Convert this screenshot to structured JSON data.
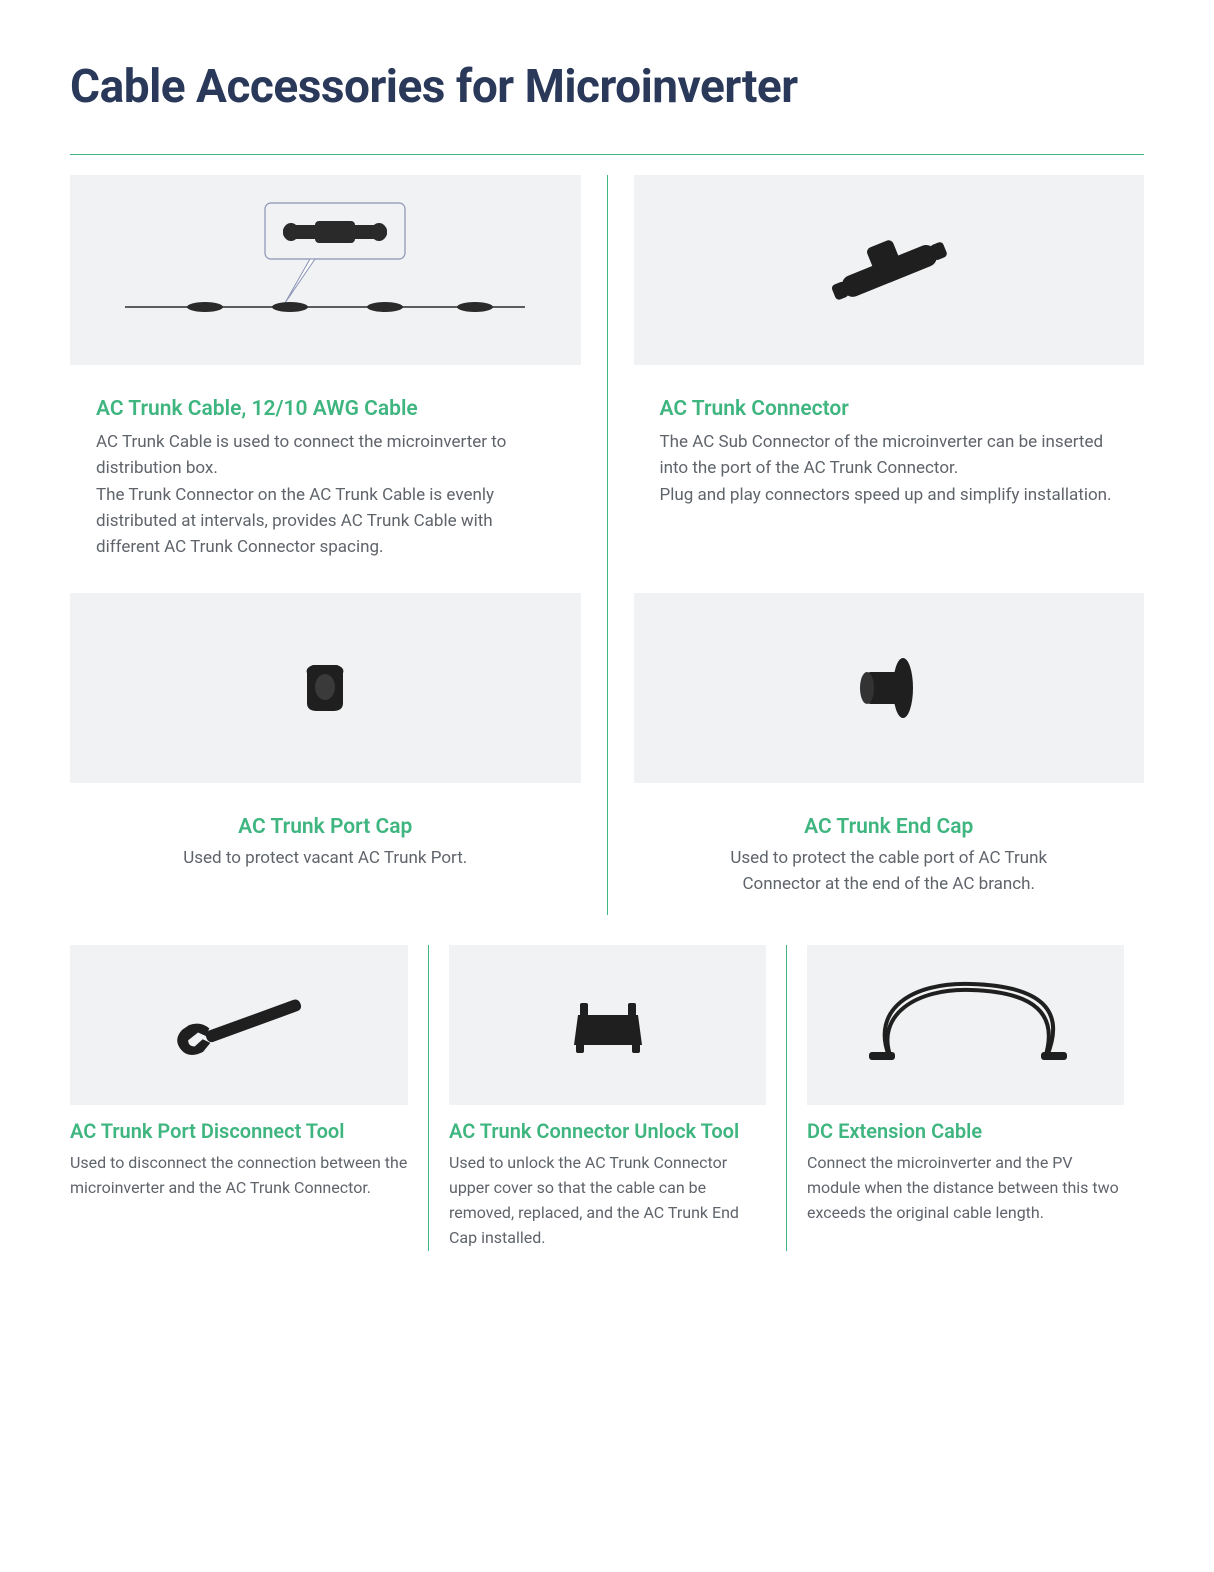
{
  "title": "Cable Accessories for Microinverter",
  "colors": {
    "heading": "#2a3959",
    "accent": "#3fb580",
    "body_text": "#5f646b",
    "panel_bg": "#f1f2f3",
    "page_bg": "#ffffff",
    "product_fill": "#2a2a2a"
  },
  "top_items": [
    {
      "title": "AC Trunk Cable, 12/10 AWG Cable",
      "desc": "AC Trunk Cable is used to connect the microinverter to distribution box.\nThe Trunk Connector on the AC Trunk Cable is evenly distributed at intervals,  provides AC Trunk Cable with different AC Trunk Connector spacing.",
      "align": "left"
    },
    {
      "title": "AC Trunk Connector",
      "desc": "The AC Sub Connector of the microinverter can be inserted into the port of the AC Trunk Connector.\nPlug and play connectors speed up and simplify installation.",
      "align": "left"
    },
    {
      "title": "AC Trunk Port Cap",
      "desc": "Used to protect vacant AC Trunk Port.",
      "align": "center"
    },
    {
      "title": "AC Trunk End Cap",
      "desc": "Used to protect the cable port of AC Trunk Connector at the end of the AC branch.",
      "align": "center"
    }
  ],
  "bottom_items": [
    {
      "title": "AC Trunk Port Disconnect Tool",
      "desc": "Used to disconnect the connection between the microinverter and the AC Trunk Connector."
    },
    {
      "title": "AC Trunk Connector Unlock Tool",
      "desc": "Used to unlock the AC Trunk Connector upper cover so that the cable can be removed, replaced, and the AC Trunk End Cap installed."
    },
    {
      "title": "DC Extension Cable",
      "desc": "Connect the microinverter and the PV module when the distance between this two exceeds the original cable length."
    }
  ]
}
